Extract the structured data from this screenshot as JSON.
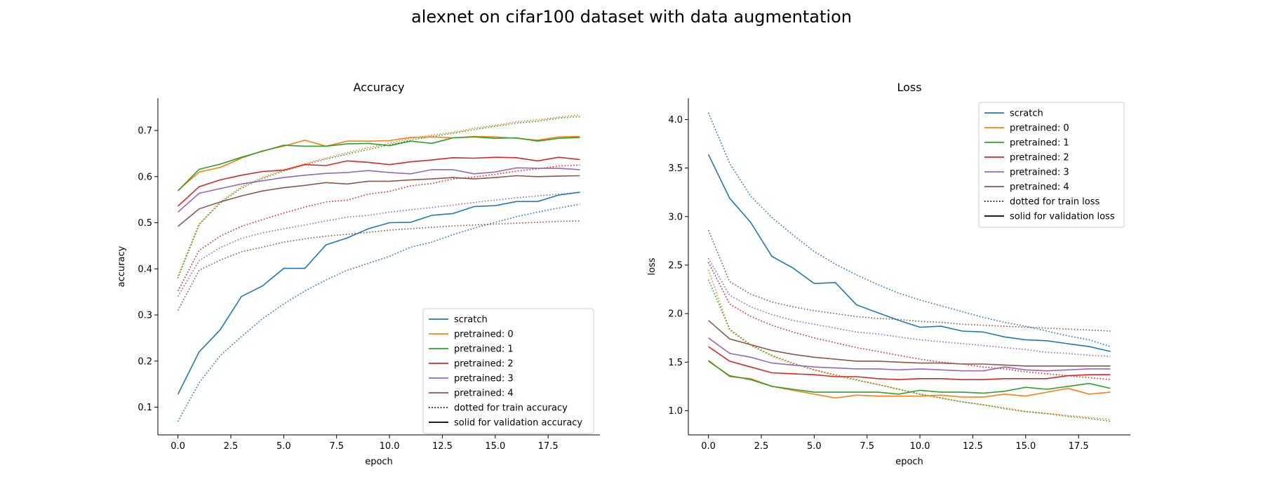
{
  "figure": {
    "suptitle": "alexnet on cifar100 dataset with data augmentation"
  },
  "chart_data": [
    {
      "type": "line",
      "title": "Accuracy",
      "xlabel": "epoch",
      "ylabel": "accuracy",
      "xlim": [
        -0.95,
        19.95
      ],
      "ylim": [
        0.04,
        0.77
      ],
      "xticks": [
        0.0,
        2.5,
        5.0,
        7.5,
        10.0,
        12.5,
        15.0,
        17.5
      ],
      "xtick_labels": [
        "0.0",
        "2.5",
        "5.0",
        "7.5",
        "10.0",
        "12.5",
        "15.0",
        "17.5"
      ],
      "yticks": [
        0.1,
        0.2,
        0.3,
        0.4,
        0.5,
        0.6,
        0.7
      ],
      "ytick_labels": [
        "0.1",
        "0.2",
        "0.3",
        "0.4",
        "0.5",
        "0.6",
        "0.7"
      ],
      "grid": false,
      "legend_position": "lower-right",
      "legend_style_entries": [
        "dotted for train accuracy",
        "solid for validation accuracy"
      ],
      "x": [
        0,
        1,
        2,
        3,
        4,
        5,
        6,
        7,
        8,
        9,
        10,
        11,
        12,
        13,
        14,
        15,
        16,
        17,
        18,
        19
      ],
      "series": [
        {
          "name": "scratch",
          "color": "#1f77b4",
          "val": [
            0.128,
            0.22,
            0.268,
            0.34,
            0.363,
            0.401,
            0.401,
            0.452,
            0.467,
            0.487,
            0.5,
            0.501,
            0.516,
            0.52,
            0.535,
            0.537,
            0.546,
            0.546,
            0.56,
            0.566
          ],
          "train": [
            0.069,
            0.153,
            0.212,
            0.253,
            0.292,
            0.324,
            0.352,
            0.376,
            0.397,
            0.412,
            0.427,
            0.447,
            0.458,
            0.474,
            0.488,
            0.501,
            0.513,
            0.523,
            0.532,
            0.54
          ]
        },
        {
          "name": "pretrained: 0",
          "color": "#ff7f0e",
          "val": [
            0.57,
            0.61,
            0.62,
            0.64,
            0.656,
            0.666,
            0.679,
            0.666,
            0.677,
            0.677,
            0.678,
            0.685,
            0.686,
            0.684,
            0.687,
            0.686,
            0.683,
            0.679,
            0.686,
            0.687
          ],
          "train": [
            0.385,
            0.497,
            0.545,
            0.578,
            0.598,
            0.615,
            0.628,
            0.64,
            0.652,
            0.663,
            0.672,
            0.683,
            0.69,
            0.696,
            0.705,
            0.711,
            0.719,
            0.723,
            0.729,
            0.734
          ]
        },
        {
          "name": "pretrained: 1",
          "color": "#2ca02c",
          "val": [
            0.569,
            0.616,
            0.627,
            0.642,
            0.655,
            0.668,
            0.666,
            0.666,
            0.671,
            0.672,
            0.667,
            0.677,
            0.672,
            0.684,
            0.686,
            0.683,
            0.684,
            0.677,
            0.683,
            0.685
          ],
          "train": [
            0.38,
            0.496,
            0.543,
            0.575,
            0.596,
            0.612,
            0.626,
            0.638,
            0.649,
            0.659,
            0.669,
            0.679,
            0.687,
            0.694,
            0.702,
            0.709,
            0.716,
            0.72,
            0.727,
            0.73
          ]
        },
        {
          "name": "pretrained: 2",
          "color": "#d62728",
          "val": [
            0.536,
            0.578,
            0.593,
            0.603,
            0.611,
            0.614,
            0.626,
            0.624,
            0.634,
            0.631,
            0.626,
            0.632,
            0.636,
            0.641,
            0.64,
            0.642,
            0.641,
            0.634,
            0.642,
            0.637
          ],
          "train": [
            0.352,
            0.44,
            0.471,
            0.492,
            0.507,
            0.521,
            0.534,
            0.545,
            0.549,
            0.562,
            0.568,
            0.58,
            0.585,
            0.595,
            0.599,
            0.605,
            0.612,
            0.617,
            0.623,
            0.625
          ]
        },
        {
          "name": "pretrained: 3",
          "color": "#9467bd",
          "val": [
            0.523,
            0.564,
            0.574,
            0.584,
            0.591,
            0.598,
            0.603,
            0.607,
            0.609,
            0.613,
            0.609,
            0.606,
            0.615,
            0.615,
            0.606,
            0.61,
            0.619,
            0.618,
            0.618,
            0.615
          ],
          "train": [
            0.34,
            0.418,
            0.446,
            0.466,
            0.478,
            0.487,
            0.495,
            0.504,
            0.512,
            0.516,
            0.523,
            0.528,
            0.533,
            0.538,
            0.544,
            0.549,
            0.554,
            0.558,
            0.562,
            0.566
          ]
        },
        {
          "name": "pretrained: 4",
          "color": "#8c564b",
          "val": [
            0.492,
            0.53,
            0.545,
            0.558,
            0.569,
            0.576,
            0.581,
            0.587,
            0.584,
            0.59,
            0.59,
            0.593,
            0.595,
            0.598,
            0.595,
            0.598,
            0.602,
            0.6,
            0.601,
            0.602
          ],
          "train": [
            0.31,
            0.397,
            0.419,
            0.437,
            0.447,
            0.458,
            0.465,
            0.471,
            0.475,
            0.479,
            0.484,
            0.487,
            0.49,
            0.493,
            0.495,
            0.497,
            0.499,
            0.501,
            0.503,
            0.504
          ]
        }
      ]
    },
    {
      "type": "line",
      "title": "Loss",
      "xlabel": "epoch",
      "ylabel": "loss",
      "xlim": [
        -0.95,
        19.95
      ],
      "ylim": [
        0.75,
        4.22
      ],
      "xticks": [
        0.0,
        2.5,
        5.0,
        7.5,
        10.0,
        12.5,
        15.0,
        17.5
      ],
      "xtick_labels": [
        "0.0",
        "2.5",
        "5.0",
        "7.5",
        "10.0",
        "12.5",
        "15.0",
        "17.5"
      ],
      "yticks": [
        1.0,
        1.5,
        2.0,
        2.5,
        3.0,
        3.5,
        4.0
      ],
      "ytick_labels": [
        "1.0",
        "1.5",
        "2.0",
        "2.5",
        "3.0",
        "3.5",
        "4.0"
      ],
      "grid": false,
      "legend_position": "upper-right",
      "legend_style_entries": [
        "dotted for train loss",
        "solid for validation loss"
      ],
      "x": [
        0,
        1,
        2,
        3,
        4,
        5,
        6,
        7,
        8,
        9,
        10,
        11,
        12,
        13,
        14,
        15,
        16,
        17,
        18,
        19
      ],
      "series": [
        {
          "name": "scratch",
          "color": "#1f77b4",
          "val": [
            3.64,
            3.19,
            2.94,
            2.59,
            2.47,
            2.31,
            2.32,
            2.09,
            2.01,
            1.93,
            1.86,
            1.87,
            1.82,
            1.81,
            1.76,
            1.73,
            1.72,
            1.69,
            1.66,
            1.61
          ],
          "train": [
            4.07,
            3.55,
            3.21,
            2.99,
            2.81,
            2.64,
            2.51,
            2.4,
            2.3,
            2.21,
            2.14,
            2.08,
            2.02,
            1.96,
            1.91,
            1.87,
            1.82,
            1.77,
            1.73,
            1.66
          ]
        },
        {
          "name": "pretrained: 0",
          "color": "#ff7f0e",
          "val": [
            1.52,
            1.35,
            1.33,
            1.25,
            1.21,
            1.17,
            1.13,
            1.16,
            1.15,
            1.15,
            1.15,
            1.16,
            1.14,
            1.14,
            1.17,
            1.15,
            1.19,
            1.23,
            1.17,
            1.19
          ],
          "train": [
            2.45,
            1.83,
            1.67,
            1.56,
            1.48,
            1.42,
            1.36,
            1.31,
            1.27,
            1.22,
            1.17,
            1.13,
            1.09,
            1.06,
            1.03,
            0.99,
            0.97,
            0.95,
            0.93,
            0.91
          ]
        },
        {
          "name": "pretrained: 1",
          "color": "#2ca02c",
          "val": [
            1.51,
            1.36,
            1.32,
            1.25,
            1.22,
            1.19,
            1.19,
            1.19,
            1.19,
            1.17,
            1.21,
            1.19,
            1.19,
            1.18,
            1.2,
            1.24,
            1.22,
            1.25,
            1.28,
            1.23
          ],
          "train": [
            2.35,
            1.84,
            1.68,
            1.57,
            1.49,
            1.42,
            1.37,
            1.32,
            1.27,
            1.22,
            1.17,
            1.13,
            1.09,
            1.06,
            1.02,
            0.99,
            0.97,
            0.94,
            0.92,
            0.89
          ]
        },
        {
          "name": "pretrained: 2",
          "color": "#d62728",
          "val": [
            1.66,
            1.51,
            1.45,
            1.39,
            1.38,
            1.37,
            1.35,
            1.35,
            1.33,
            1.32,
            1.33,
            1.33,
            1.32,
            1.32,
            1.33,
            1.33,
            1.33,
            1.36,
            1.37,
            1.37
          ],
          "train": [
            2.53,
            2.1,
            1.97,
            1.88,
            1.81,
            1.75,
            1.7,
            1.65,
            1.61,
            1.57,
            1.53,
            1.5,
            1.48,
            1.45,
            1.43,
            1.4,
            1.38,
            1.36,
            1.34,
            1.32
          ]
        },
        {
          "name": "pretrained: 3",
          "color": "#9467bd",
          "val": [
            1.75,
            1.59,
            1.55,
            1.49,
            1.47,
            1.45,
            1.44,
            1.43,
            1.43,
            1.42,
            1.43,
            1.42,
            1.41,
            1.41,
            1.45,
            1.42,
            1.41,
            1.42,
            1.43,
            1.43
          ],
          "train": [
            2.57,
            2.19,
            2.07,
            1.99,
            1.93,
            1.89,
            1.85,
            1.81,
            1.79,
            1.76,
            1.73,
            1.71,
            1.69,
            1.67,
            1.65,
            1.63,
            1.6,
            1.59,
            1.57,
            1.56
          ]
        },
        {
          "name": "pretrained: 4",
          "color": "#8c564b",
          "val": [
            1.93,
            1.74,
            1.68,
            1.62,
            1.58,
            1.55,
            1.53,
            1.51,
            1.51,
            1.5,
            1.49,
            1.49,
            1.48,
            1.48,
            1.47,
            1.46,
            1.46,
            1.46,
            1.46,
            1.46
          ],
          "train": [
            2.86,
            2.33,
            2.2,
            2.12,
            2.07,
            2.03,
            2.0,
            1.97,
            1.95,
            1.94,
            1.92,
            1.91,
            1.89,
            1.88,
            1.87,
            1.86,
            1.85,
            1.84,
            1.83,
            1.82
          ]
        }
      ]
    }
  ]
}
